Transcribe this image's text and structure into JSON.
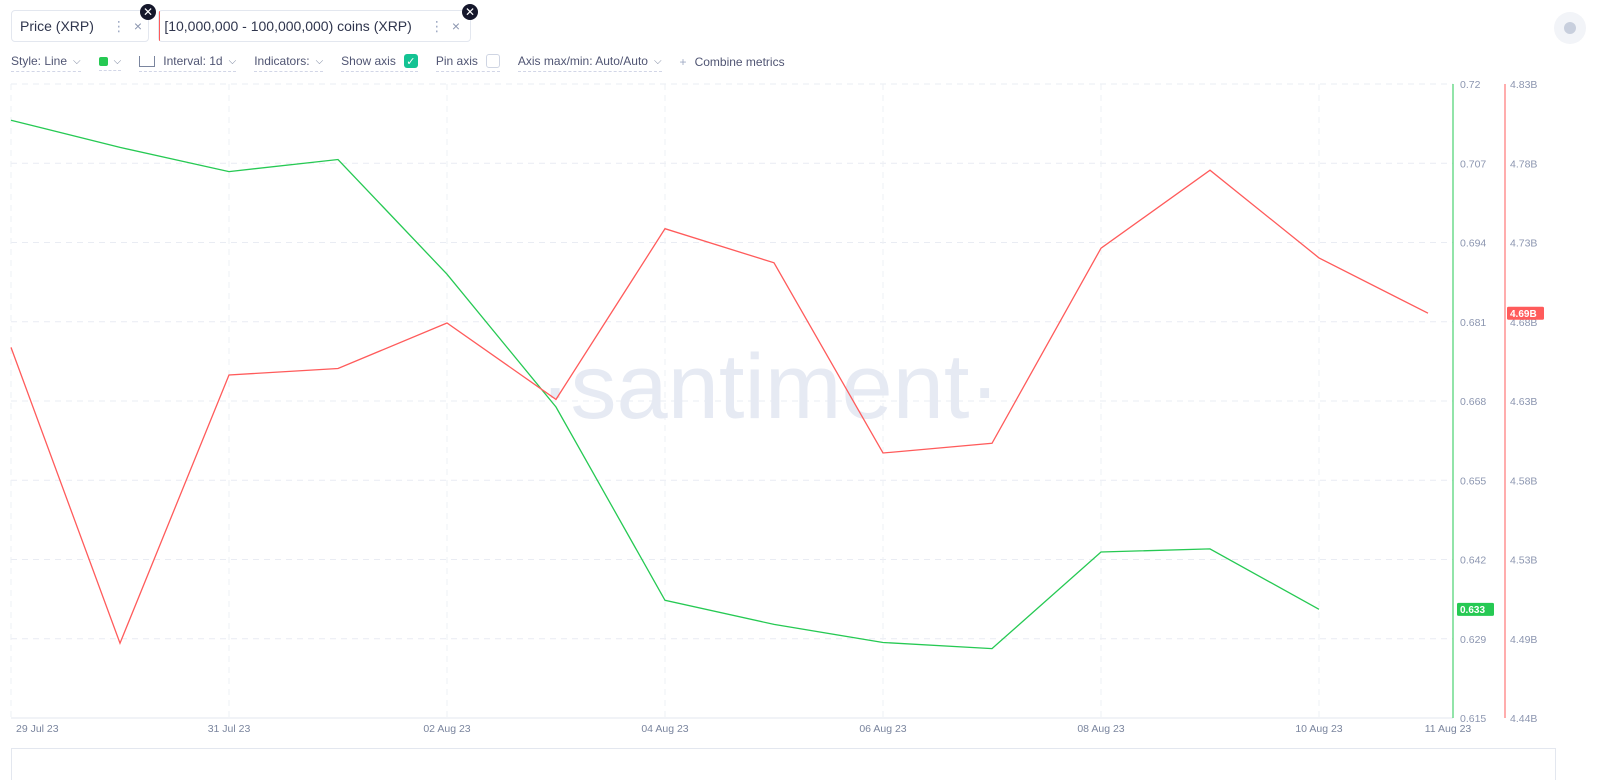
{
  "tabs": [
    {
      "label": "Price (XRP)",
      "dots": "⋮",
      "close": "×",
      "color": "#26c953",
      "badge": "✕"
    },
    {
      "label": "[10,000,000 - 100,000,000) coins (XRP)",
      "dots": "⋮",
      "close": "×",
      "color": "#ff5b5b",
      "badge": "✕"
    }
  ],
  "toolbar": {
    "style_label": "Style: Line",
    "interval_label": "Interval: 1d",
    "indicators_label": "Indicators:",
    "show_axis_label": "Show axis",
    "show_axis_checked": true,
    "pin_axis_label": "Pin axis",
    "pin_axis_checked": false,
    "axis_minmax_label": "Axis max/min: Auto/Auto",
    "combine_label": "Combine metrics",
    "metric_color": "#26c953"
  },
  "chart_data": {
    "type": "line",
    "watermark": "·santiment·",
    "x": [
      "29 Jul 23",
      "30 Jul 23",
      "31 Jul 23",
      "01 Aug 23",
      "02 Aug 23",
      "03 Aug 23",
      "04 Aug 23",
      "05 Aug 23",
      "06 Aug 23",
      "07 Aug 23",
      "08 Aug 23",
      "09 Aug 23",
      "10 Aug 23",
      "11 Aug 23"
    ],
    "x_tick_labels": [
      "29 Jul 23",
      "31 Jul 23",
      "02 Aug 23",
      "04 Aug 23",
      "06 Aug 23",
      "08 Aug 23",
      "10 Aug 23",
      "11 Aug 23"
    ],
    "series": [
      {
        "name": "Price (XRP)",
        "color": "#26c953",
        "axis": "left",
        "values": [
          0.714,
          0.7095,
          0.7055,
          0.7075,
          0.6885,
          0.6665,
          0.6345,
          0.6305,
          0.6275,
          0.6265,
          0.6425,
          0.643,
          0.633,
          null
        ],
        "last_value_label": "0.633"
      },
      {
        "name": "[10,000,000 - 100,000,000) coins (XRP)",
        "color": "#ff5b5b",
        "axis": "right",
        "unit": "B",
        "values": [
          4.668,
          4.486,
          4.651,
          4.655,
          4.683,
          4.636,
          4.741,
          4.72,
          4.603,
          4.609,
          4.729,
          4.777,
          4.723,
          4.689
        ],
        "last_value_label": "4.69B"
      }
    ],
    "axes": {
      "left": {
        "ylim": [
          0.615,
          0.72
        ],
        "ticks": [
          "0.72",
          "0.707",
          "0.694",
          "0.681",
          "0.668",
          "0.655",
          "0.642",
          "0.629",
          "0.615"
        ]
      },
      "right": {
        "ylim": [
          4.44,
          4.83
        ],
        "ticks": [
          "4.83B",
          "4.78B",
          "4.73B",
          "4.68B",
          "4.63B",
          "4.58B",
          "4.53B",
          "4.49B",
          "4.44B"
        ]
      }
    },
    "grid": true,
    "legend": "none"
  }
}
